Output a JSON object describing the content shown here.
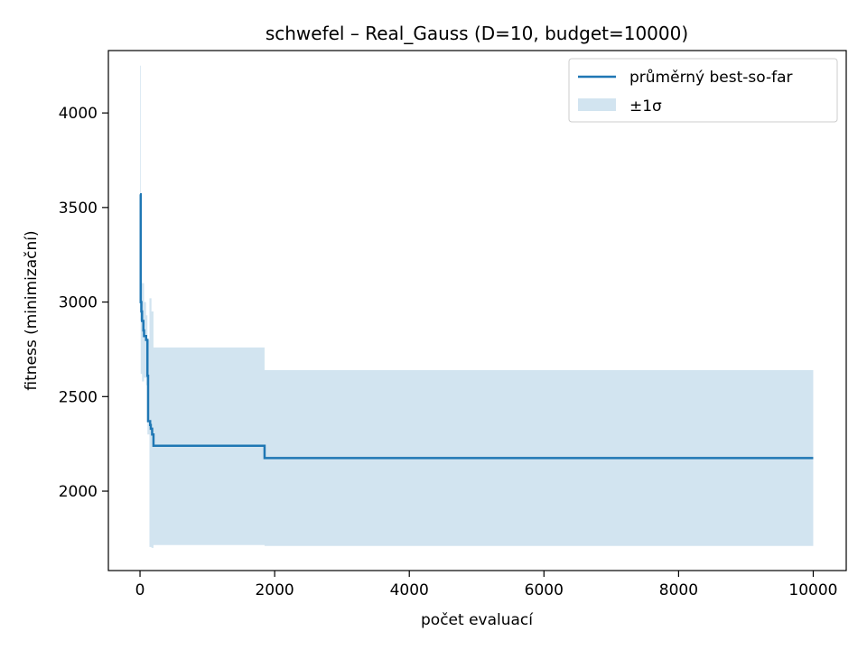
{
  "chart_data": {
    "type": "line",
    "title": "schwefel – Real_Gauss (D=10, budget=10000)",
    "xlabel": "počet evaluací",
    "ylabel": "fitness (minimizační)",
    "xlim": [
      -470,
      10490
    ],
    "ylim": [
      1580,
      4330
    ],
    "xticks": [
      0,
      2000,
      4000,
      6000,
      8000,
      10000
    ],
    "xtick_labels": [
      "0",
      "2000",
      "4000",
      "6000",
      "8000",
      "10000"
    ],
    "yticks": [
      2000,
      2500,
      3000,
      3500,
      4000
    ],
    "ytick_labels": [
      "2000",
      "2500",
      "3000",
      "3500",
      "4000"
    ],
    "legend": {
      "position": "top-right",
      "entries": [
        {
          "label": "průměrný best-so-far",
          "kind": "line"
        },
        {
          "label": "±1σ",
          "kind": "band"
        }
      ]
    },
    "colors": {
      "line": "#1f77b4",
      "band": "#1f77b4",
      "band_opacity": 0.2
    },
    "series": [
      {
        "name": "průměrný best-so-far",
        "x": [
          0,
          10,
          10,
          20,
          20,
          30,
          30,
          50,
          50,
          60,
          60,
          90,
          90,
          110,
          110,
          120,
          120,
          150,
          150,
          160,
          160,
          180,
          180,
          200,
          200,
          1850,
          1850,
          10000
        ],
        "y": [
          3570,
          3570,
          3000,
          3000,
          2950,
          2950,
          2900,
          2900,
          2850,
          2850,
          2820,
          2820,
          2800,
          2800,
          2610,
          2610,
          2370,
          2370,
          2350,
          2350,
          2330,
          2330,
          2300,
          2300,
          2240,
          2240,
          2175,
          2175
        ]
      },
      {
        "name": "±1σ",
        "x": [
          0,
          10,
          10,
          30,
          30,
          60,
          60,
          90,
          90,
          110,
          110,
          140,
          140,
          170,
          170,
          200,
          200,
          1850,
          1850,
          10000
        ],
        "upper": [
          4250,
          4250,
          3120,
          3120,
          3100,
          3100,
          3000,
          3000,
          2930,
          2930,
          2800,
          2800,
          3020,
          3020,
          2950,
          2950,
          2760,
          2760,
          2640,
          2640
        ],
        "lower": [
          2900,
          2900,
          2620,
          2620,
          2580,
          2580,
          2600,
          2600,
          2560,
          2560,
          2300,
          2300,
          1705,
          1705,
          1700,
          1700,
          1715,
          1715,
          1710,
          1710
        ]
      }
    ]
  }
}
